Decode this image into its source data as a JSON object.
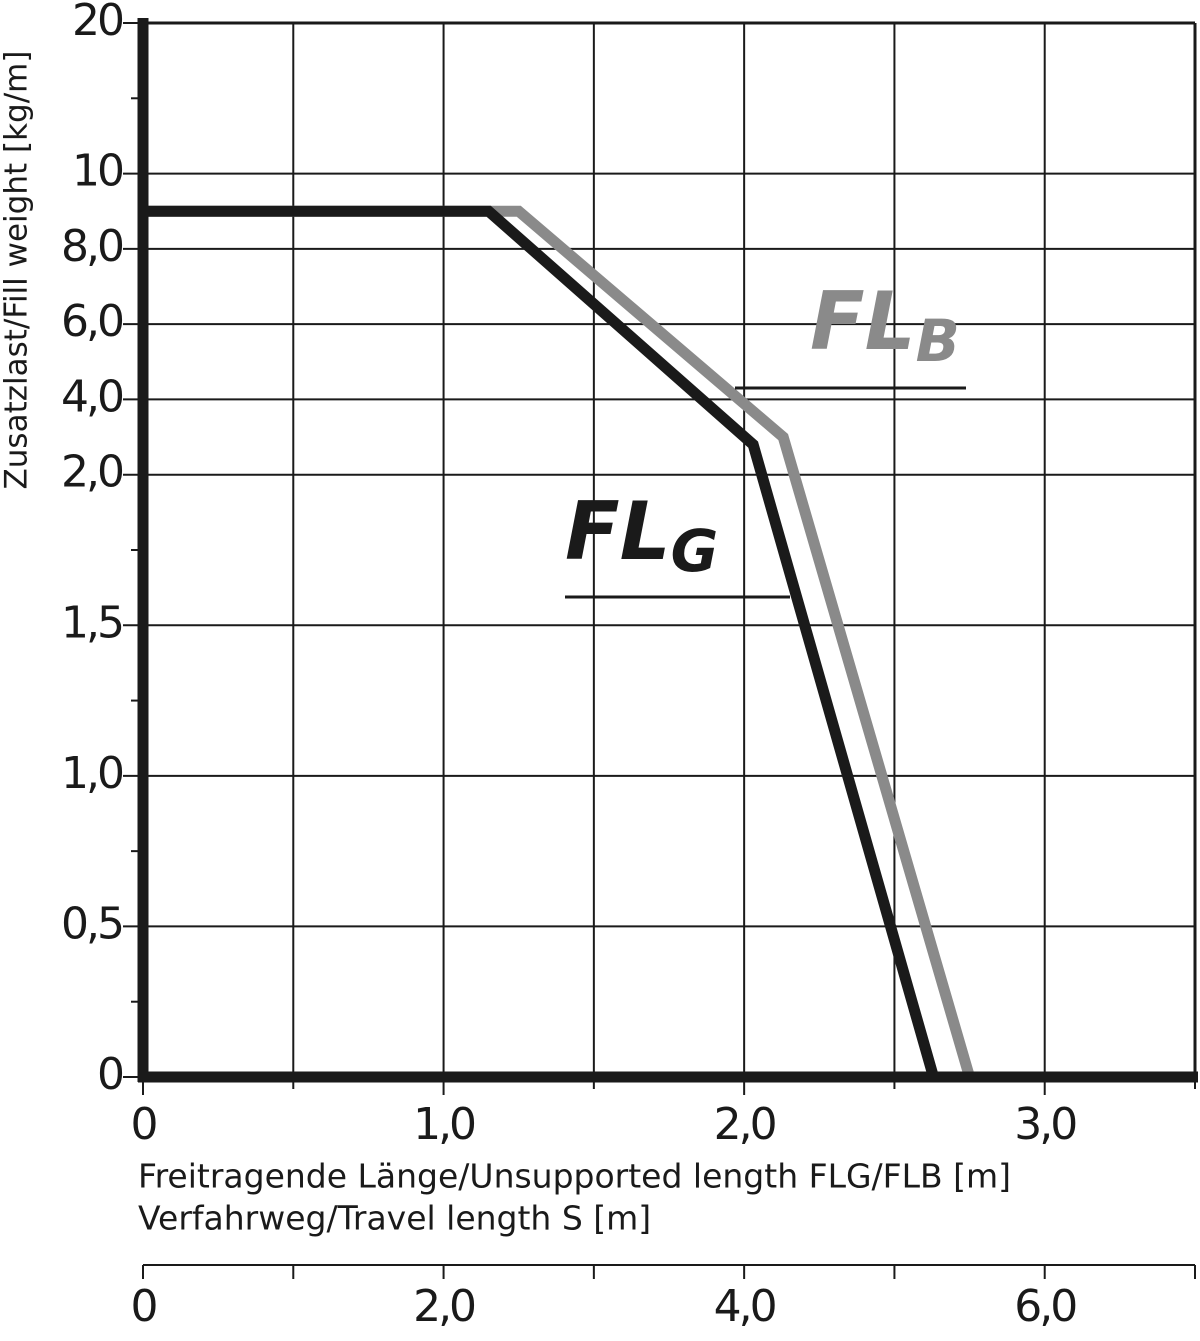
{
  "chart_data": {
    "type": "line",
    "ylabel": "Zusatzlast/Fill weight [kg/m]",
    "xlabel": "Freitragende Länge/Unsupported length FLG/FLB [m]",
    "x2label": "Verfahrweg/Travel length S [m]",
    "xlim": [
      0,
      3.5
    ],
    "xticks": [
      0,
      {
        "value": 1,
        "label": "1,0"
      },
      {
        "value": 2,
        "label": "2,0"
      },
      {
        "value": 3,
        "label": "3,0"
      }
    ],
    "xminor_ticks": [
      0.5,
      1.5,
      2.5,
      3.5
    ],
    "x2lim": [
      0,
      7
    ],
    "x2ticks": [
      0,
      {
        "value": 2,
        "label": "2,0"
      },
      {
        "value": 4,
        "label": "4,0"
      },
      {
        "value": 6,
        "label": "6,0"
      }
    ],
    "x2minor_ticks": [
      1,
      3,
      5,
      7
    ],
    "ylim": [
      0,
      20
    ],
    "yticks": [
      0,
      {
        "value": 0.5,
        "label": "0,5"
      },
      {
        "value": 1,
        "label": "1,0"
      },
      {
        "value": 1.5,
        "label": "1,5"
      },
      {
        "value": 2,
        "label": "2,0"
      },
      {
        "value": 4,
        "label": "4,0"
      },
      {
        "value": 6,
        "label": "6,0"
      },
      {
        "value": 8,
        "label": "8,0"
      },
      10,
      20
    ],
    "yminor_ticks": [
      0.25,
      0.75,
      1.25,
      1.75,
      15
    ],
    "grid": true,
    "series": [
      {
        "name": "FLG",
        "color": "#1a1a1a",
        "x": [
          0,
          1.15,
          2.03,
          2.63
        ],
        "values": [
          9,
          9,
          2.8,
          0
        ]
      },
      {
        "name": "FLB",
        "color": "#8a8a8a",
        "x": [
          0,
          1.25,
          2.13,
          2.75
        ],
        "values": [
          9,
          9,
          3,
          0
        ]
      }
    ]
  }
}
